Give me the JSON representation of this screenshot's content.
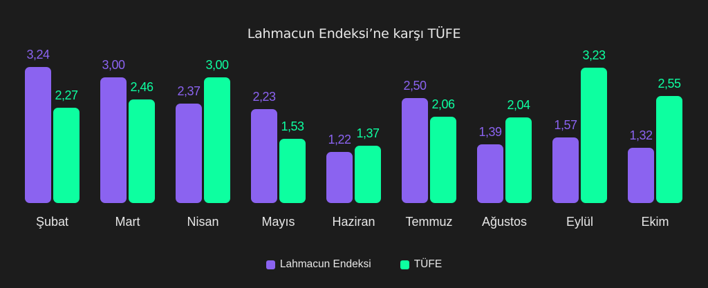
{
  "chart_data": {
    "type": "bar",
    "title": "Lahmacun Endeksi’ne karşı TÜFE",
    "xlabel": "",
    "ylabel": "",
    "categories": [
      "Şubat",
      "Mart",
      "Nisan",
      "Mayıs",
      "Haziran",
      "Temmuz",
      "Ağustos",
      "Eylül",
      "Ekim"
    ],
    "series": [
      {
        "name": "Lahmacun Endeksi",
        "color": "#8b63f0",
        "values": [
          3.24,
          3.0,
          2.37,
          2.23,
          1.22,
          2.5,
          1.39,
          1.57,
          1.32
        ],
        "labels": [
          "3,24",
          "3,00",
          "2,37",
          "2,23",
          "1,22",
          "2,50",
          "1,39",
          "1,57",
          "1,32"
        ]
      },
      {
        "name": "TÜFE",
        "color": "#0dffa0",
        "values": [
          2.27,
          2.46,
          3.0,
          1.53,
          1.37,
          2.06,
          2.04,
          3.23,
          2.55
        ],
        "labels": [
          "2,27",
          "2,46",
          "3,00",
          "1,53",
          "1,37",
          "2,06",
          "2,04",
          "3,23",
          "2,55"
        ]
      }
    ],
    "grid": false,
    "axes_visible": false,
    "legend_position": "bottom"
  },
  "legend": [
    {
      "label": "Lahmacun Endeksi",
      "color": "#8b63f0"
    },
    {
      "label": "TÜFE",
      "color": "#0dffa0"
    }
  ]
}
